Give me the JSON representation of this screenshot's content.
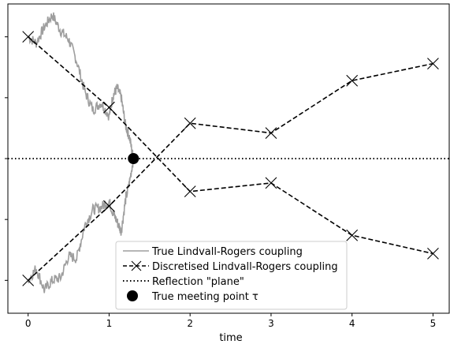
{
  "chart_data": {
    "type": "line",
    "xlabel": "time",
    "ylabel": "",
    "xlim": [
      -0.25,
      5.2
    ],
    "ylim": [
      -1.27,
      1.27
    ],
    "xticks": [
      0,
      1,
      2,
      3,
      4,
      5
    ],
    "yticks": [
      -1.0,
      -0.5,
      0.0,
      0.5,
      1.0
    ],
    "grid": false,
    "legend_position": "bottom-center",
    "reflection_plane_y": 0.0,
    "true_meeting_point": {
      "x": 1.3,
      "y": 0.0
    },
    "true_paths": [
      {
        "points": [
          [
            0,
            1.0
          ],
          [
            0.1,
            0.95
          ],
          [
            0.2,
            1.08
          ],
          [
            0.3,
            1.18
          ],
          [
            0.4,
            1.05
          ],
          [
            0.5,
            0.98
          ],
          [
            0.6,
            0.8
          ],
          [
            0.7,
            0.55
          ],
          [
            0.8,
            0.4
          ],
          [
            0.9,
            0.46
          ],
          [
            1.0,
            0.35
          ],
          [
            1.05,
            0.52
          ],
          [
            1.1,
            0.58
          ],
          [
            1.15,
            0.5
          ],
          [
            1.2,
            0.28
          ],
          [
            1.25,
            0.18
          ],
          [
            1.3,
            0.0
          ]
        ]
      },
      {
        "points": [
          [
            0,
            -1.0
          ],
          [
            0.1,
            -0.9
          ],
          [
            0.2,
            -1.08
          ],
          [
            0.3,
            -1.0
          ],
          [
            0.4,
            -0.98
          ],
          [
            0.5,
            -0.8
          ],
          [
            0.6,
            -0.82
          ],
          [
            0.7,
            -0.55
          ],
          [
            0.8,
            -0.42
          ],
          [
            0.9,
            -0.4
          ],
          [
            1.0,
            -0.35
          ],
          [
            1.05,
            -0.45
          ],
          [
            1.1,
            -0.52
          ],
          [
            1.15,
            -0.6
          ],
          [
            1.2,
            -0.35
          ],
          [
            1.25,
            -0.2
          ],
          [
            1.3,
            0.0
          ]
        ]
      }
    ],
    "series": [
      {
        "x": [
          0,
          1,
          2,
          3,
          4,
          5
        ],
        "y": [
          1.0,
          0.42,
          -0.27,
          -0.2,
          -0.63,
          -0.78
        ]
      },
      {
        "x": [
          0,
          1,
          2,
          3,
          4,
          5
        ],
        "y": [
          -1.0,
          -0.39,
          0.29,
          0.21,
          0.64,
          0.78
        ]
      }
    ],
    "legend": [
      {
        "label": "True Lindvall-Rogers coupling",
        "style": "gray-solid"
      },
      {
        "label": "Discretised Lindvall-Rogers coupling",
        "style": "dashed-x"
      },
      {
        "label": "Reflection \"plane\"",
        "style": "dotted"
      },
      {
        "label": "True meeting point τ",
        "style": "dot"
      }
    ],
    "colors": {
      "true_path": "#9e9e9e",
      "discretised": "#000000",
      "axes": "#000000"
    }
  }
}
